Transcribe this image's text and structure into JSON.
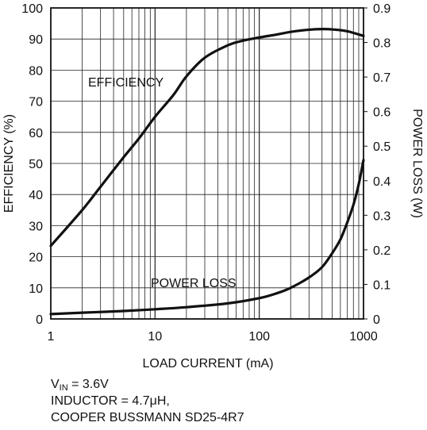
{
  "chart_data": {
    "type": "line",
    "xlabel": "LOAD CURRENT (mA)",
    "ylabel_left": "EFFICIENCY (%)",
    "ylabel_right": "POWER LOSS (W)",
    "x_scale": "log",
    "xlim": [
      1,
      1000
    ],
    "ylim_left": [
      0,
      100
    ],
    "ylim_right": [
      0,
      0.9
    ],
    "grid": true,
    "x_ticks": [
      "1",
      "10",
      "100",
      "1000"
    ],
    "y_ticks_left": [
      "0",
      "10",
      "20",
      "30",
      "40",
      "50",
      "60",
      "70",
      "80",
      "90",
      "100"
    ],
    "y_ticks_right": [
      "0",
      "0.1",
      "0.2",
      "0.3",
      "0.4",
      "0.5",
      "0.6",
      "0.7",
      "0.8",
      "0.9"
    ],
    "series": [
      {
        "name": "EFFICIENCY",
        "axis": "left",
        "x": [
          1,
          2,
          3,
          5,
          7,
          10,
          15,
          20,
          30,
          50,
          70,
          100,
          150,
          200,
          300,
          400,
          500,
          700,
          1000
        ],
        "y": [
          23.5,
          35,
          42.5,
          52,
          58,
          65,
          72,
          78,
          84,
          88,
          89.5,
          90.5,
          91.5,
          92.3,
          93,
          93.2,
          93.1,
          92.5,
          91
        ]
      },
      {
        "name": "POWER LOSS",
        "axis": "right",
        "x": [
          1,
          2,
          5,
          10,
          20,
          50,
          100,
          150,
          200,
          300,
          400,
          500,
          600,
          700,
          800,
          900,
          1000
        ],
        "y": [
          0.014,
          0.018,
          0.023,
          0.028,
          0.034,
          0.045,
          0.06,
          0.075,
          0.09,
          0.12,
          0.15,
          0.19,
          0.23,
          0.28,
          0.33,
          0.39,
          0.46
        ]
      }
    ]
  },
  "annotations": {
    "efficiency_label": "EFFICIENCY",
    "power_loss_label": "POWER LOSS"
  },
  "caption": {
    "vin_symbol": "V",
    "vin_subscript": "IN",
    "vin_value": " = 3.6V",
    "inductor": "INDUCTOR = 4.7μH,",
    "part": "COOPER BUSSMANN SD25-4R7"
  }
}
